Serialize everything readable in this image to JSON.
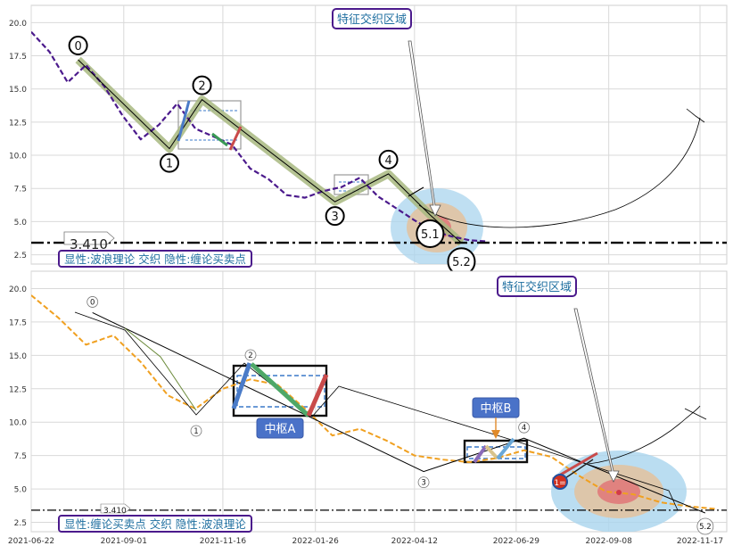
{
  "chart_data": [
    {
      "type": "line",
      "panel": "top",
      "ylim": [
        1.8,
        21.3
      ],
      "yticks": [
        "2.5",
        "5.0",
        "7.5",
        "10.0",
        "12.5",
        "15.0",
        "17.5",
        "20.0"
      ],
      "grid": true,
      "price_series": {
        "x": [
          "2021-06-22",
          "2021-07-06",
          "2021-07-20",
          "2021-08-03",
          "2021-08-17",
          "2021-08-31",
          "2021-09-14",
          "2021-09-28",
          "2021-10-12",
          "2021-10-26",
          "2021-11-09",
          "2021-11-23",
          "2021-12-07",
          "2021-12-21",
          "2022-01-04",
          "2022-01-18",
          "2022-02-01",
          "2022-02-15",
          "2022-03-01",
          "2022-03-15",
          "2022-03-29",
          "2022-04-12",
          "2022-04-26",
          "2022-05-10",
          "2022-05-24",
          "2022-06-07"
        ],
        "y": [
          19.3,
          17.8,
          15.5,
          16.8,
          15.2,
          13.0,
          11.2,
          12.3,
          13.9,
          12.0,
          11.4,
          10.8,
          9.0,
          8.2,
          7.0,
          6.8,
          7.3,
          7.6,
          8.3,
          6.9,
          6.0,
          5.1,
          4.3,
          3.9,
          3.6,
          3.5
        ]
      },
      "wave_pivots": {
        "labels": [
          "0",
          "1",
          "2",
          "3",
          "4",
          "5.1",
          "5.2"
        ],
        "x": [
          "2021-07-28",
          "2021-10-06",
          "2021-10-31",
          "2022-02-10",
          "2022-03-23",
          "2022-04-24",
          "2022-05-18"
        ],
        "y": [
          17.2,
          10.5,
          14.2,
          6.5,
          8.6,
          5.5,
          3.4
        ]
      },
      "level_line": {
        "value": 3.41,
        "label": "3.410"
      },
      "box_labels": [
        "2",
        "4"
      ],
      "annotation_text": "特征交织区域",
      "legend_text": "显性:波浪理论 交织 隐性:缠论买卖点"
    },
    {
      "type": "line",
      "panel": "bottom",
      "ylim": [
        1.8,
        21.3
      ],
      "yticks": [
        "2.5",
        "5.0",
        "7.5",
        "10.0",
        "12.5",
        "15.0",
        "17.5",
        "20.0"
      ],
      "xticks": [
        "2021-06-22",
        "2021-09-01",
        "2021-11-16",
        "2022-01-26",
        "2022-04-12",
        "2022-06-29",
        "2022-09-08",
        "2022-11-17"
      ],
      "grid": true,
      "price_series": {
        "x": [
          "2021-06-22",
          "2021-07-13",
          "2021-08-03",
          "2021-08-24",
          "2021-09-14",
          "2021-10-05",
          "2021-10-26",
          "2021-11-16",
          "2021-12-07",
          "2021-12-28",
          "2022-01-18",
          "2022-02-08",
          "2022-03-01",
          "2022-03-22",
          "2022-04-12",
          "2022-05-03",
          "2022-05-24",
          "2022-06-14",
          "2022-07-05",
          "2022-07-26",
          "2022-08-16",
          "2022-09-06",
          "2022-09-27",
          "2022-10-18",
          "2022-11-08",
          "2022-11-29"
        ],
        "y": [
          19.5,
          17.8,
          15.8,
          16.5,
          14.5,
          12.0,
          11.0,
          12.5,
          13.2,
          12.8,
          11.0,
          9.0,
          9.5,
          8.6,
          7.5,
          7.2,
          7.0,
          7.3,
          7.9,
          7.4,
          6.0,
          4.8,
          4.6,
          4.0,
          3.7,
          3.5
        ]
      },
      "wave_pivots": {
        "labels": [
          "0",
          "3",
          "4",
          "5.2"
        ],
        "x": [
          "2021-08-08",
          "2022-04-19",
          "2022-07-05",
          "2022-11-21"
        ],
        "y": [
          18.2,
          6.3,
          8.8,
          3.2
        ]
      },
      "level_line": {
        "value": 3.41,
        "label": "3.410"
      },
      "zones": [
        {
          "label": "中枢A",
          "y_range": [
            10.5,
            14.2
          ]
        },
        {
          "label": "中枢B",
          "y_range": [
            7.0,
            8.8
          ]
        }
      ],
      "marker_text": "1",
      "marker_label": "1=",
      "annotation_text": "特征交织区域",
      "legend_text": "显性:缠论买卖点 交织 隐性:波浪理论"
    }
  ]
}
